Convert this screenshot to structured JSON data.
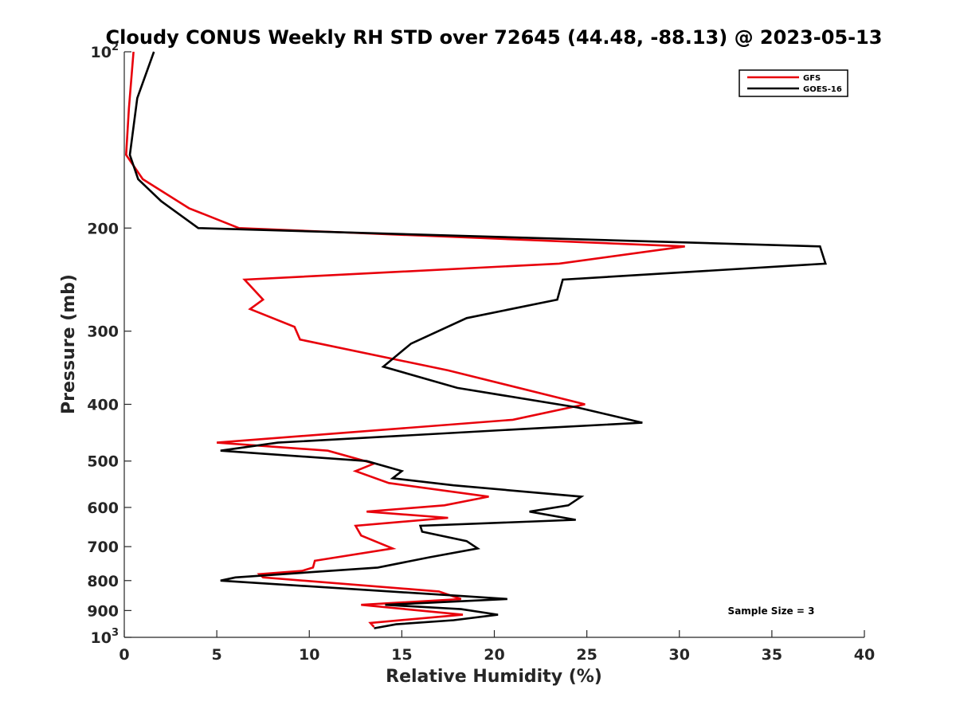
{
  "chart_data": {
    "type": "line",
    "title": "Cloudy CONUS Weekly RH STD over 72645 (44.48, -88.13) @ 2023-05-13",
    "xlabel": "Relative Humidity (%)",
    "ylabel": "Pressure (mb)",
    "xlim": [
      0,
      40
    ],
    "ylim": [
      100,
      1000
    ],
    "y_scale": "log",
    "y_reversed": true,
    "x_ticks": [
      "0",
      "5",
      "10",
      "15",
      "20",
      "25",
      "30",
      "35",
      "40"
    ],
    "y_ticks": [
      {
        "value": 100,
        "base": "10",
        "sup": "2"
      },
      {
        "value": 200,
        "label": "200"
      },
      {
        "value": 300,
        "label": "300"
      },
      {
        "value": 400,
        "label": "400"
      },
      {
        "value": 500,
        "label": "500"
      },
      {
        "value": 600,
        "label": "600"
      },
      {
        "value": 700,
        "label": "700"
      },
      {
        "value": 800,
        "label": "800"
      },
      {
        "value": 900,
        "label": "900"
      },
      {
        "value": 1000,
        "base": "10",
        "sup": "3"
      }
    ],
    "legend_position": "top-right",
    "grid": false,
    "annotation": "Sample Size = 3",
    "series": [
      {
        "name": "GFS",
        "color": "#e8000b",
        "points": [
          [
            0.5,
            100
          ],
          [
            0.25,
            125
          ],
          [
            0.1,
            150
          ],
          [
            1.0,
            165
          ],
          [
            3.5,
            185
          ],
          [
            6.2,
            200
          ],
          [
            30.3,
            215
          ],
          [
            23.5,
            230
          ],
          [
            6.5,
            245
          ],
          [
            7.5,
            265
          ],
          [
            6.8,
            275
          ],
          [
            9.2,
            295
          ],
          [
            9.5,
            310
          ],
          [
            17.5,
            350
          ],
          [
            24.9,
            400
          ],
          [
            21.0,
            425
          ],
          [
            5.0,
            465
          ],
          [
            11.0,
            480
          ],
          [
            13.5,
            505
          ],
          [
            12.5,
            520
          ],
          [
            14.3,
            545
          ],
          [
            19.7,
            575
          ],
          [
            17.3,
            595
          ],
          [
            13.1,
            610
          ],
          [
            17.5,
            625
          ],
          [
            12.5,
            645
          ],
          [
            12.8,
            670
          ],
          [
            14.5,
            705
          ],
          [
            10.3,
            740
          ],
          [
            10.2,
            760
          ],
          [
            9.6,
            770
          ],
          [
            7.3,
            780
          ],
          [
            7.5,
            790
          ],
          [
            17.0,
            835
          ],
          [
            18.2,
            860
          ],
          [
            12.8,
            880
          ],
          [
            18.3,
            915
          ],
          [
            13.3,
            945
          ],
          [
            13.5,
            960
          ]
        ]
      },
      {
        "name": "GOES-16",
        "color": "#000000",
        "points": [
          [
            1.6,
            100
          ],
          [
            0.7,
            120
          ],
          [
            0.3,
            150
          ],
          [
            0.75,
            165
          ],
          [
            2.0,
            180
          ],
          [
            4.0,
            200
          ],
          [
            37.6,
            215
          ],
          [
            37.9,
            230
          ],
          [
            23.7,
            245
          ],
          [
            23.4,
            265
          ],
          [
            18.5,
            285
          ],
          [
            15.5,
            315
          ],
          [
            14.0,
            345
          ],
          [
            18.0,
            375
          ],
          [
            24.5,
            405
          ],
          [
            28.0,
            430
          ],
          [
            22.0,
            440
          ],
          [
            8.3,
            465
          ],
          [
            5.2,
            480
          ],
          [
            13.1,
            500
          ],
          [
            15.0,
            520
          ],
          [
            14.5,
            535
          ],
          [
            17.8,
            550
          ],
          [
            24.7,
            575
          ],
          [
            24.0,
            595
          ],
          [
            21.9,
            610
          ],
          [
            24.4,
            630
          ],
          [
            16.0,
            645
          ],
          [
            16.1,
            660
          ],
          [
            18.5,
            685
          ],
          [
            19.1,
            705
          ],
          [
            16.5,
            730
          ],
          [
            13.7,
            760
          ],
          [
            6.0,
            790
          ],
          [
            5.2,
            800
          ],
          [
            18.2,
            850
          ],
          [
            20.7,
            860
          ],
          [
            14.1,
            880
          ],
          [
            18.2,
            895
          ],
          [
            20.2,
            915
          ],
          [
            17.8,
            935
          ],
          [
            14.7,
            950
          ],
          [
            13.5,
            965
          ]
        ]
      }
    ]
  }
}
